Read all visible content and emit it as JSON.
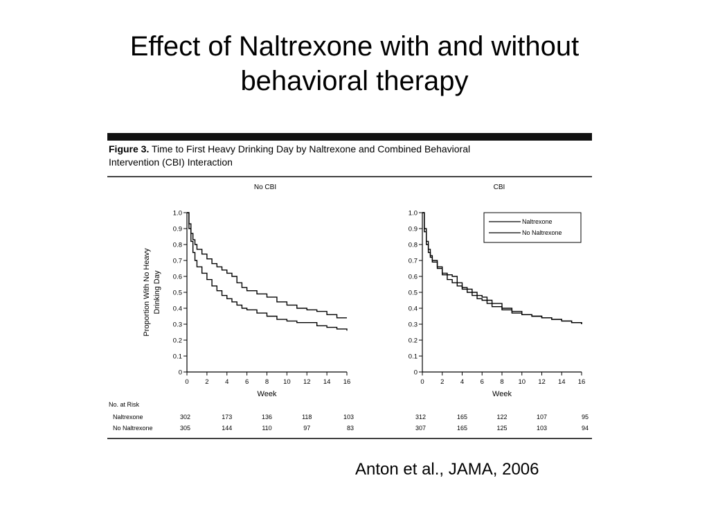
{
  "slide": {
    "title_line1": "Effect of Naltrexone with and without",
    "title_line2": "behavioral therapy",
    "citation": "Anton et al., JAMA, 2006"
  },
  "figure": {
    "title_bold": "Figure 3.",
    "title_line1": " Time to First Heavy Drinking Day by Naltrexone and Combined Behavioral",
    "title_line2": "Intervention (CBI) Interaction",
    "ylabel_line1": "Proportion With No Heavy",
    "ylabel_line2": "Drinking Day",
    "xlabel": "Week",
    "legend": [
      "Naltrexone",
      "No Naltrexone"
    ],
    "no_at_risk": {
      "heading": "No. at Risk",
      "row_labels": [
        "Naltrexone",
        "No Naltrexone"
      ],
      "panels": [
        {
          "weeks": [
            0,
            4,
            8,
            12,
            16
          ],
          "naltrexone": [
            "302",
            "173",
            "136",
            "118",
            "103"
          ],
          "no_naltrexone": [
            "305",
            "144",
            "110",
            "97",
            "83"
          ]
        },
        {
          "weeks": [
            0,
            4,
            8,
            12,
            16
          ],
          "naltrexone": [
            "312",
            "165",
            "122",
            "107",
            "95"
          ],
          "no_naltrexone": [
            "307",
            "165",
            "125",
            "103",
            "94"
          ]
        }
      ]
    }
  },
  "chart_data": [
    {
      "type": "line",
      "title": "No CBI",
      "xlabel": "Week",
      "ylabel": "Proportion With No Heavy Drinking Day",
      "xlim": [
        0,
        16
      ],
      "ylim": [
        0,
        1.0
      ],
      "xticks": [
        0,
        2,
        4,
        6,
        8,
        10,
        12,
        14,
        16
      ],
      "yticks": [
        0,
        0.1,
        0.2,
        0.3,
        0.4,
        0.5,
        0.6,
        0.7,
        0.8,
        0.9,
        1.0
      ],
      "legend_position": "none",
      "series": [
        {
          "name": "Naltrexone",
          "x": [
            0,
            0.2,
            0.4,
            0.6,
            0.8,
            1,
            1.5,
            2,
            2.5,
            3,
            3.5,
            4,
            4.5,
            5,
            5.5,
            6,
            7,
            8,
            9,
            10,
            11,
            12,
            13,
            14,
            15,
            16
          ],
          "y": [
            1.0,
            0.93,
            0.87,
            0.83,
            0.8,
            0.77,
            0.74,
            0.71,
            0.68,
            0.66,
            0.64,
            0.62,
            0.6,
            0.56,
            0.53,
            0.51,
            0.49,
            0.47,
            0.44,
            0.42,
            0.4,
            0.39,
            0.38,
            0.36,
            0.34,
            0.34
          ]
        },
        {
          "name": "No Naltrexone",
          "x": [
            0,
            0.2,
            0.4,
            0.6,
            0.8,
            1,
            1.5,
            2,
            2.5,
            3,
            3.5,
            4,
            4.5,
            5,
            5.5,
            6,
            7,
            8,
            9,
            10,
            11,
            12,
            13,
            14,
            15,
            16
          ],
          "y": [
            1.0,
            0.9,
            0.82,
            0.75,
            0.7,
            0.66,
            0.62,
            0.58,
            0.54,
            0.51,
            0.48,
            0.46,
            0.44,
            0.42,
            0.4,
            0.39,
            0.37,
            0.35,
            0.33,
            0.32,
            0.31,
            0.31,
            0.29,
            0.28,
            0.27,
            0.26
          ]
        }
      ]
    },
    {
      "type": "line",
      "title": "CBI",
      "xlabel": "Week",
      "xlim": [
        0,
        16
      ],
      "ylim": [
        0,
        1.0
      ],
      "xticks": [
        0,
        2,
        4,
        6,
        8,
        10,
        12,
        14,
        16
      ],
      "yticks": [
        0,
        0.1,
        0.2,
        0.3,
        0.4,
        0.5,
        0.6,
        0.7,
        0.8,
        0.9,
        1.0
      ],
      "legend_position": "top-right",
      "series": [
        {
          "name": "Naltrexone",
          "x": [
            0,
            0.2,
            0.4,
            0.6,
            0.8,
            1,
            1.5,
            2,
            2.5,
            3,
            3.5,
            4,
            4.5,
            5,
            5.5,
            6,
            6.5,
            7,
            8,
            9,
            10,
            11,
            12,
            13,
            14,
            15,
            16
          ],
          "y": [
            1.0,
            0.9,
            0.82,
            0.77,
            0.73,
            0.7,
            0.66,
            0.62,
            0.61,
            0.6,
            0.56,
            0.53,
            0.52,
            0.5,
            0.48,
            0.47,
            0.45,
            0.43,
            0.4,
            0.38,
            0.36,
            0.35,
            0.34,
            0.33,
            0.32,
            0.31,
            0.3
          ]
        },
        {
          "name": "No Naltrexone",
          "x": [
            0,
            0.2,
            0.4,
            0.6,
            0.8,
            1,
            1.5,
            2,
            2.5,
            3,
            3.5,
            4,
            4.5,
            5,
            5.5,
            6,
            6.5,
            7,
            8,
            9,
            10,
            11,
            12,
            13,
            14,
            15,
            16
          ],
          "y": [
            1.0,
            0.88,
            0.8,
            0.75,
            0.72,
            0.69,
            0.65,
            0.61,
            0.58,
            0.56,
            0.54,
            0.52,
            0.5,
            0.48,
            0.46,
            0.45,
            0.43,
            0.41,
            0.39,
            0.37,
            0.36,
            0.35,
            0.34,
            0.33,
            0.32,
            0.31,
            0.3
          ]
        }
      ]
    }
  ]
}
